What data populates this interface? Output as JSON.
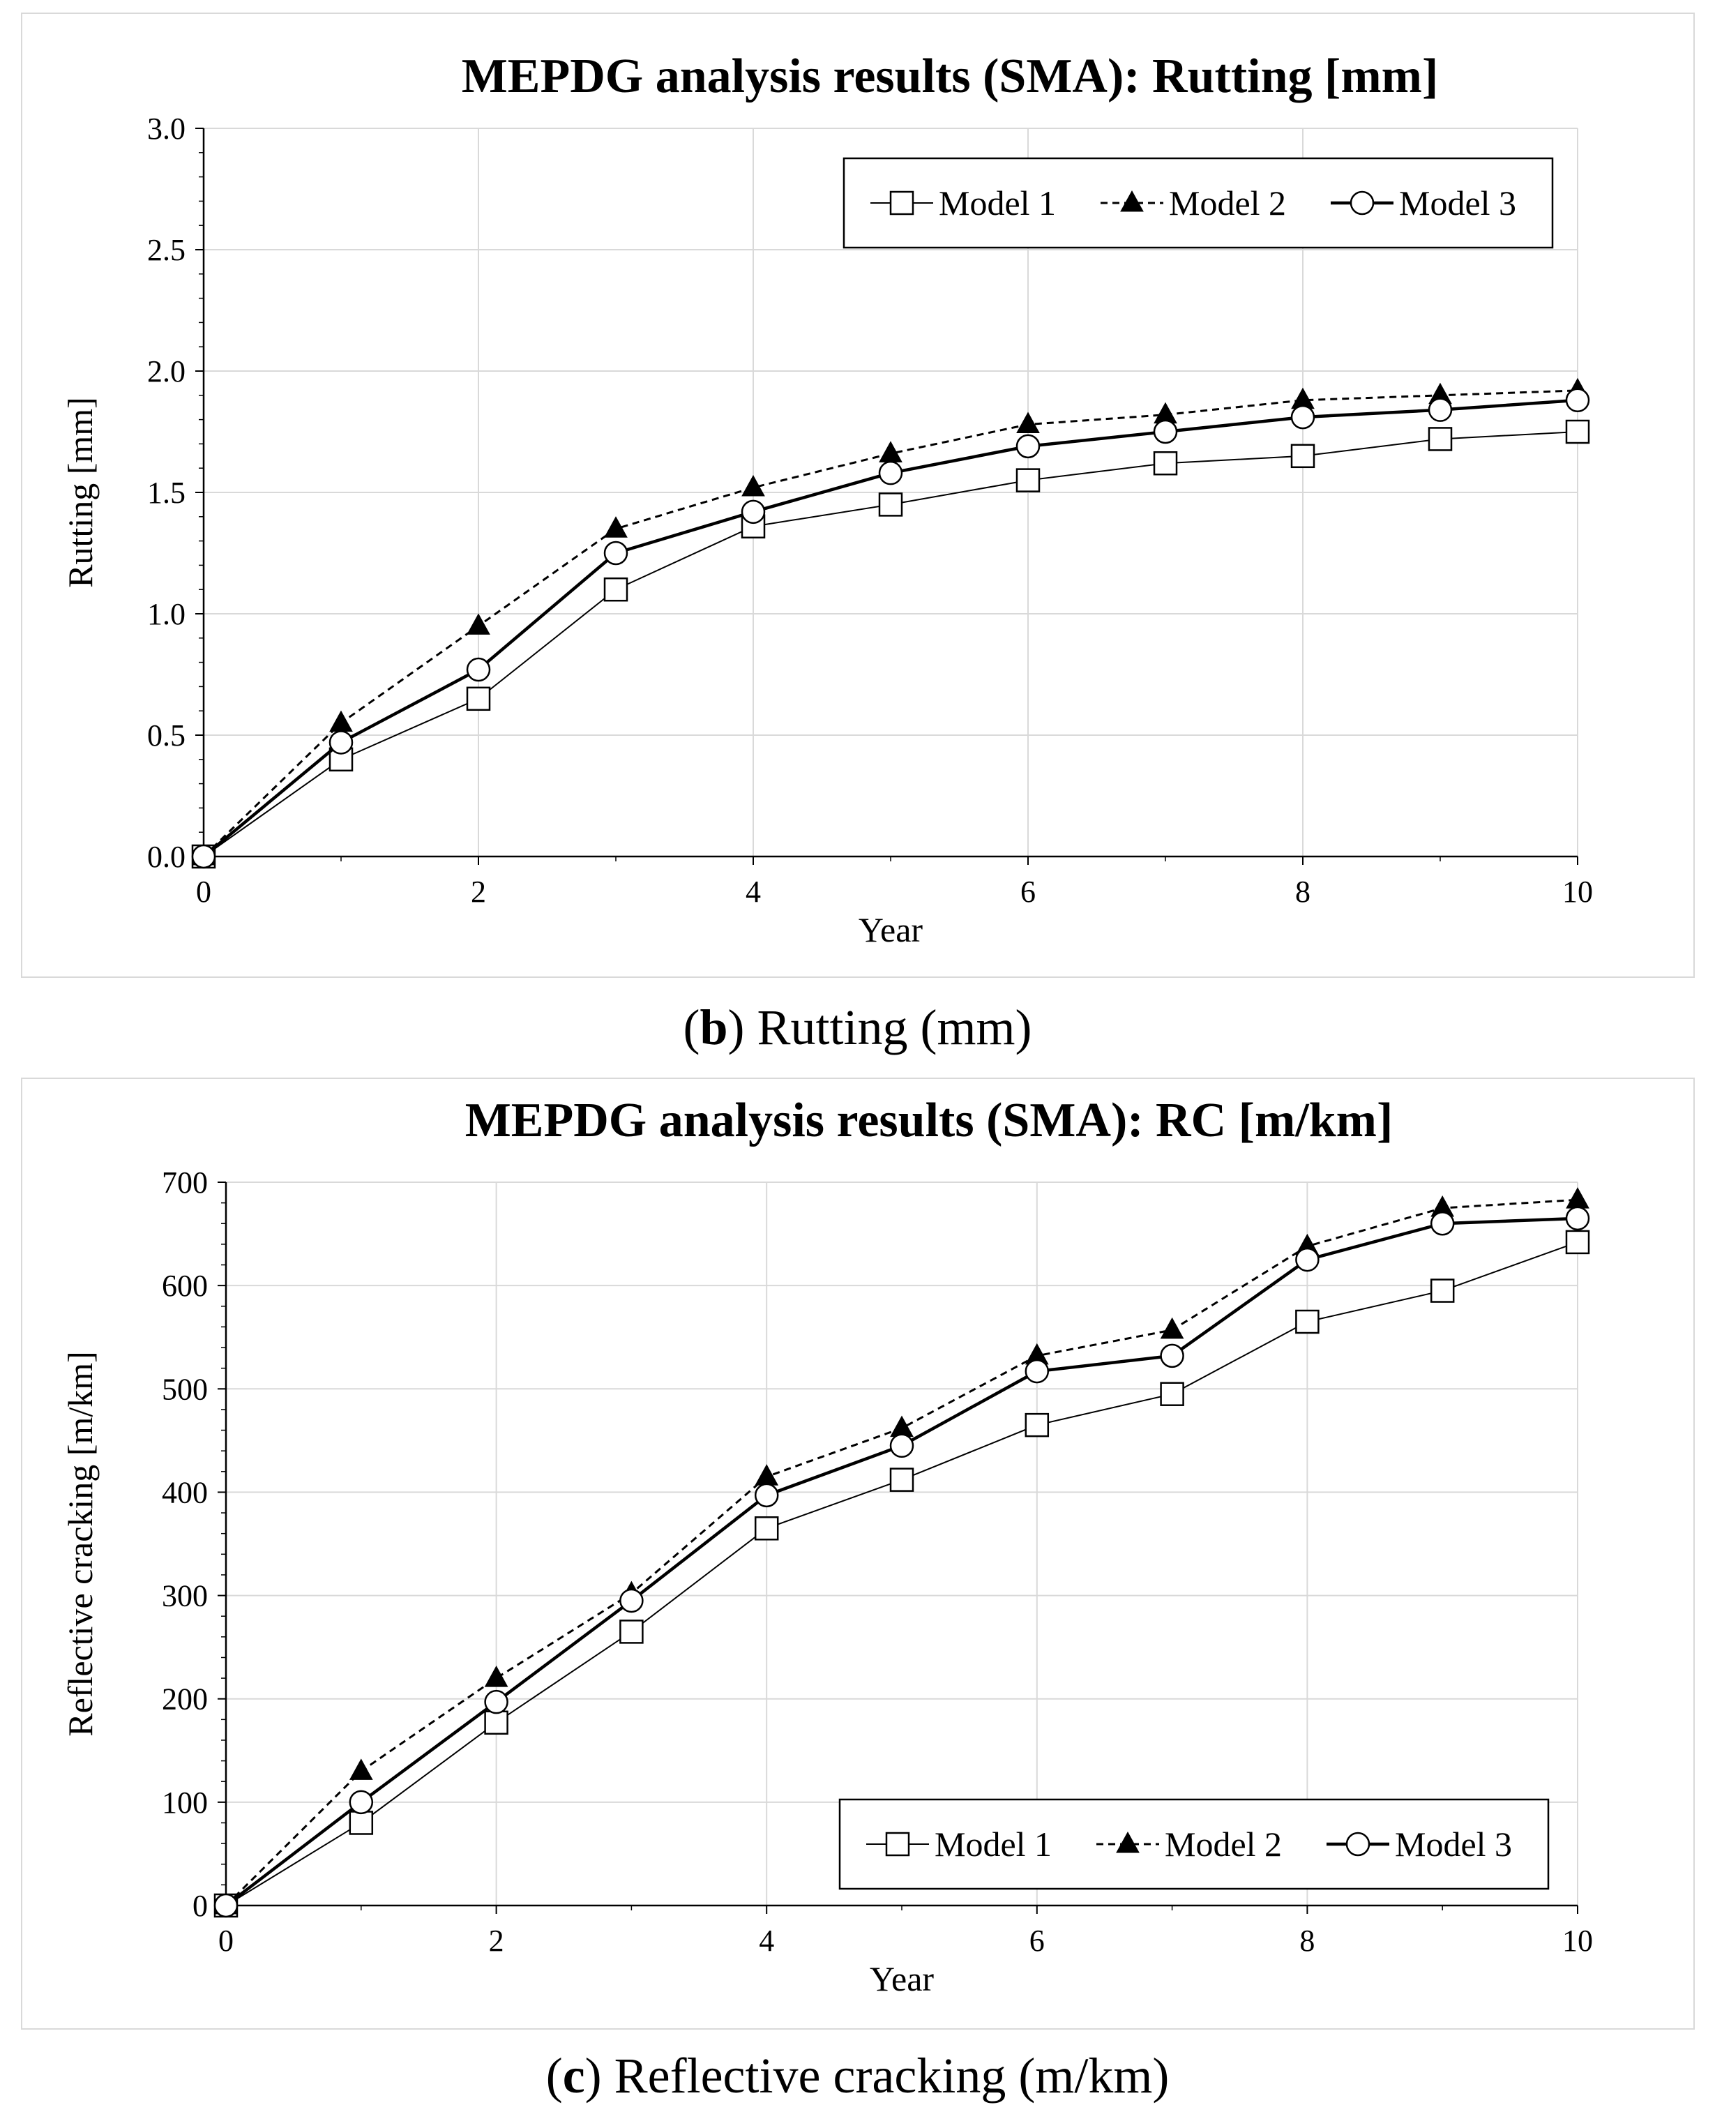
{
  "chart_data": [
    {
      "type": "line",
      "title": "MEPDG analysis results (SMA): Rutting [mm]",
      "xlabel": "Year",
      "ylabel": "Rutting [mm]",
      "xlim": [
        0,
        10
      ],
      "ylim": [
        0,
        3.0
      ],
      "x_ticks": [
        0,
        2,
        4,
        6,
        8,
        10
      ],
      "y_ticks": [
        0.0,
        0.5,
        1.0,
        1.5,
        2.0,
        2.5,
        3.0
      ],
      "y_tick_labels": [
        "0.0",
        "0.5",
        "1.0",
        "1.5",
        "2.0",
        "2.5",
        "3.0"
      ],
      "grid": true,
      "legend_position": "top-right",
      "x": [
        0,
        1,
        2,
        3,
        4,
        5,
        6,
        7,
        8,
        9,
        10
      ],
      "series": [
        {
          "name": "Model 1",
          "marker": "square",
          "line": "solid-thin",
          "values": [
            0,
            0.4,
            0.65,
            1.1,
            1.36,
            1.45,
            1.55,
            1.62,
            1.65,
            1.72,
            1.75
          ]
        },
        {
          "name": "Model 2",
          "marker": "triangle",
          "line": "dashed",
          "values": [
            0,
            0.55,
            0.95,
            1.35,
            1.52,
            1.66,
            1.78,
            1.82,
            1.88,
            1.9,
            1.92
          ]
        },
        {
          "name": "Model 3",
          "marker": "circle",
          "line": "solid-thick",
          "values": [
            0,
            0.47,
            0.77,
            1.25,
            1.42,
            1.58,
            1.69,
            1.75,
            1.81,
            1.84,
            1.88
          ]
        }
      ]
    },
    {
      "type": "line",
      "title": "MEPDG analysis results (SMA): RC [m/km]",
      "xlabel": "Year",
      "ylabel": "Reflective cracking [m/km]",
      "xlim": [
        0,
        10
      ],
      "ylim": [
        0,
        700
      ],
      "x_ticks": [
        0,
        2,
        4,
        6,
        8,
        10
      ],
      "y_ticks": [
        0,
        100,
        200,
        300,
        400,
        500,
        600,
        700
      ],
      "y_tick_labels": [
        "0",
        "100",
        "200",
        "300",
        "400",
        "500",
        "600",
        "700"
      ],
      "grid": true,
      "legend_position": "bottom-right",
      "x": [
        0,
        1,
        2,
        3,
        4,
        5,
        6,
        7,
        8,
        9,
        10
      ],
      "series": [
        {
          "name": "Model 1",
          "marker": "square",
          "line": "solid-thin",
          "values": [
            0,
            80,
            177,
            265,
            365,
            412,
            465,
            495,
            565,
            595,
            642
          ]
        },
        {
          "name": "Model 2",
          "marker": "triangle",
          "line": "dashed",
          "values": [
            0,
            130,
            220,
            302,
            415,
            462,
            532,
            557,
            638,
            675,
            683
          ]
        },
        {
          "name": "Model 3",
          "marker": "circle",
          "line": "solid-thick",
          "values": [
            0,
            100,
            197,
            295,
            397,
            445,
            517,
            532,
            625,
            660,
            665
          ]
        }
      ]
    }
  ],
  "captions": {
    "b": {
      "letter": "b",
      "text": " Rutting (mm)"
    },
    "c": {
      "letter": "c",
      "text": " Reflective cracking (m/km)"
    }
  }
}
